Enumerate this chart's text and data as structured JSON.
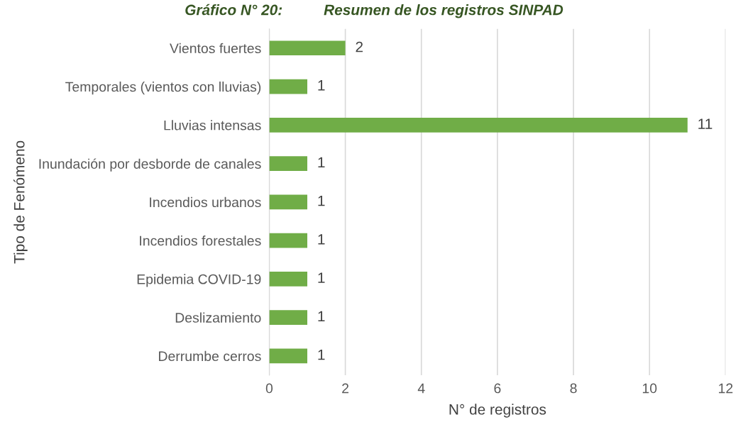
{
  "chart_data": {
    "type": "bar",
    "orientation": "horizontal",
    "title": "Gráfico N° 20:          Resumen de los registros SINPAD",
    "xlabel": "N° de registros",
    "ylabel": "Tipo de Fenómeno",
    "categories": [
      "Vientos fuertes",
      "Temporales (vientos con lluvias)",
      "Lluvias intensas",
      "Inundación por desborde de canales",
      "Incendios urbanos",
      "Incendios forestales",
      "Epidemia COVID-19",
      "Deslizamiento",
      "Derrumbe cerros"
    ],
    "values": [
      2,
      1,
      11,
      1,
      1,
      1,
      1,
      1,
      1
    ],
    "color": "#70ad47",
    "xlim": [
      0,
      12
    ],
    "xticks": [
      0,
      2,
      4,
      6,
      8,
      10,
      12
    ],
    "grid": "x",
    "data_labels": true,
    "legend": false
  }
}
